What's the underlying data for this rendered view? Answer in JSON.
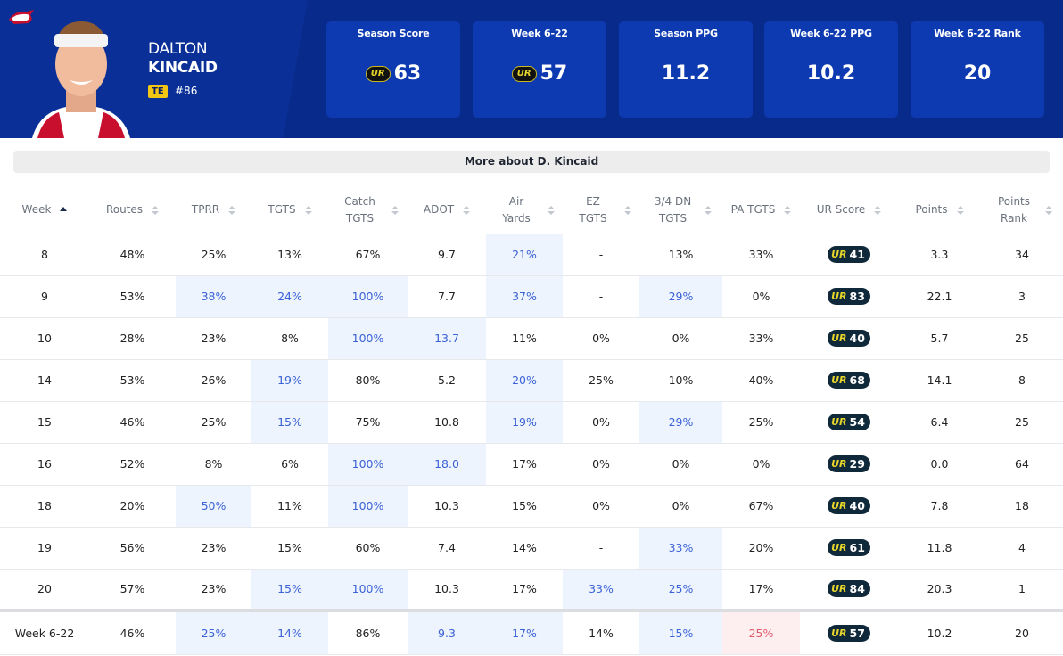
{
  "logo_text": "UR",
  "header": {
    "first_name": "DALTON",
    "last_name": "KINCAID",
    "position": "TE",
    "number": "#86"
  },
  "stats": [
    {
      "label": "Season Score",
      "value": "63",
      "badge": true
    },
    {
      "label": "Week 6-22",
      "value": "57",
      "badge": true
    },
    {
      "label": "Season PPG",
      "value": "11.2",
      "badge": false
    },
    {
      "label": "Week 6-22 PPG",
      "value": "10.2",
      "badge": false
    },
    {
      "label": "Week 6-22 Rank",
      "value": "20",
      "badge": false
    }
  ],
  "more_button": "More about D. Kincaid",
  "table": {
    "columns": [
      "Week",
      "Routes",
      "TPRR",
      "TGTS",
      "Catch TGTS",
      "ADOT",
      "Air Yards",
      "EZ TGTS",
      "3/4 DN TGTS",
      "PA TGTS",
      "UR Score",
      "Points",
      "Points Rank"
    ],
    "sorted_column": 0,
    "score_column": 10,
    "rows": [
      {
        "cells": [
          "8",
          "48%",
          "25%",
          "13%",
          "67%",
          "9.7",
          "21%",
          "-",
          "13%",
          "33%",
          "41",
          "3.3",
          "34"
        ],
        "highlight": [
          6
        ],
        "low": []
      },
      {
        "cells": [
          "9",
          "53%",
          "38%",
          "24%",
          "100%",
          "7.7",
          "37%",
          "-",
          "29%",
          "0%",
          "83",
          "22.1",
          "3"
        ],
        "highlight": [
          2,
          3,
          4,
          6,
          8
        ],
        "low": []
      },
      {
        "cells": [
          "10",
          "28%",
          "23%",
          "8%",
          "100%",
          "13.7",
          "11%",
          "0%",
          "0%",
          "33%",
          "40",
          "5.7",
          "25"
        ],
        "highlight": [
          4,
          5
        ],
        "low": []
      },
      {
        "cells": [
          "14",
          "53%",
          "26%",
          "19%",
          "80%",
          "5.2",
          "20%",
          "25%",
          "10%",
          "40%",
          "68",
          "14.1",
          "8"
        ],
        "highlight": [
          3,
          6
        ],
        "low": []
      },
      {
        "cells": [
          "15",
          "46%",
          "25%",
          "15%",
          "75%",
          "10.8",
          "19%",
          "0%",
          "29%",
          "25%",
          "54",
          "6.4",
          "25"
        ],
        "highlight": [
          3,
          6,
          8
        ],
        "low": []
      },
      {
        "cells": [
          "16",
          "52%",
          "8%",
          "6%",
          "100%",
          "18.0",
          "17%",
          "0%",
          "0%",
          "0%",
          "29",
          "0.0",
          "64"
        ],
        "highlight": [
          4,
          5
        ],
        "low": []
      },
      {
        "cells": [
          "18",
          "20%",
          "50%",
          "11%",
          "100%",
          "10.3",
          "15%",
          "0%",
          "0%",
          "67%",
          "40",
          "7.8",
          "18"
        ],
        "highlight": [
          2,
          4
        ],
        "low": []
      },
      {
        "cells": [
          "19",
          "56%",
          "23%",
          "15%",
          "60%",
          "7.4",
          "14%",
          "-",
          "33%",
          "20%",
          "61",
          "11.8",
          "4"
        ],
        "highlight": [
          8
        ],
        "low": []
      },
      {
        "cells": [
          "20",
          "57%",
          "23%",
          "15%",
          "100%",
          "10.3",
          "17%",
          "33%",
          "25%",
          "17%",
          "84",
          "20.3",
          "1"
        ],
        "highlight": [
          3,
          4,
          7,
          8
        ],
        "low": []
      }
    ],
    "footer": {
      "cells": [
        "Week 6-22",
        "46%",
        "25%",
        "14%",
        "86%",
        "9.3",
        "17%",
        "14%",
        "15%",
        "25%",
        "57",
        "10.2",
        "20"
      ],
      "highlight": [
        2,
        3,
        5,
        6,
        8
      ],
      "low": [
        9
      ]
    }
  }
}
